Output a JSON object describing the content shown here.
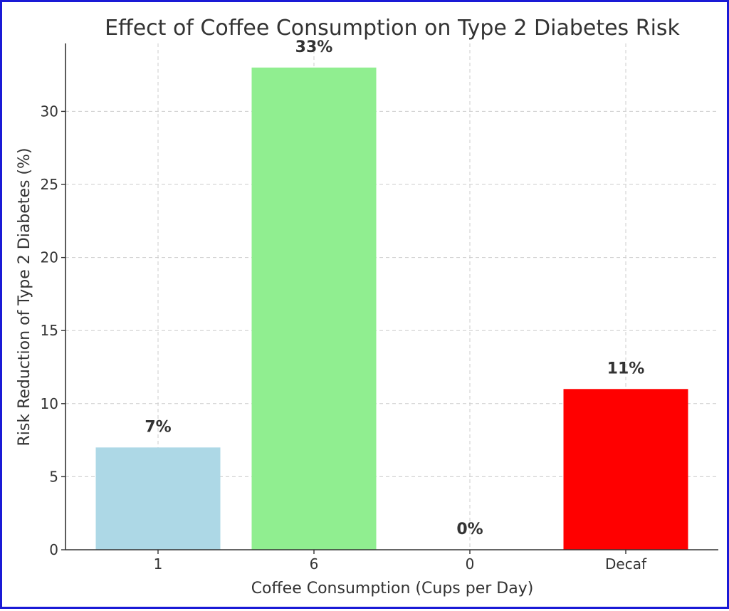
{
  "chart_data": {
    "type": "bar",
    "title": "Effect of Coffee Consumption on Type 2 Diabetes Risk",
    "xlabel": "Coffee Consumption (Cups per Day)",
    "ylabel": "Risk Reduction of Type 2 Diabetes (%)",
    "categories": [
      "1",
      "6",
      "0",
      "Decaf"
    ],
    "values": [
      7,
      33,
      0,
      11
    ],
    "data_labels": [
      "7%",
      "33%",
      "0%",
      "11%"
    ],
    "colors": [
      "#add8e6",
      "#90ee90",
      "#90ee90",
      "#ff0000"
    ],
    "ylim": [
      0,
      34.65
    ],
    "yticks": [
      0,
      5,
      10,
      15,
      20,
      25,
      30
    ],
    "grid": true,
    "legend": "none"
  }
}
